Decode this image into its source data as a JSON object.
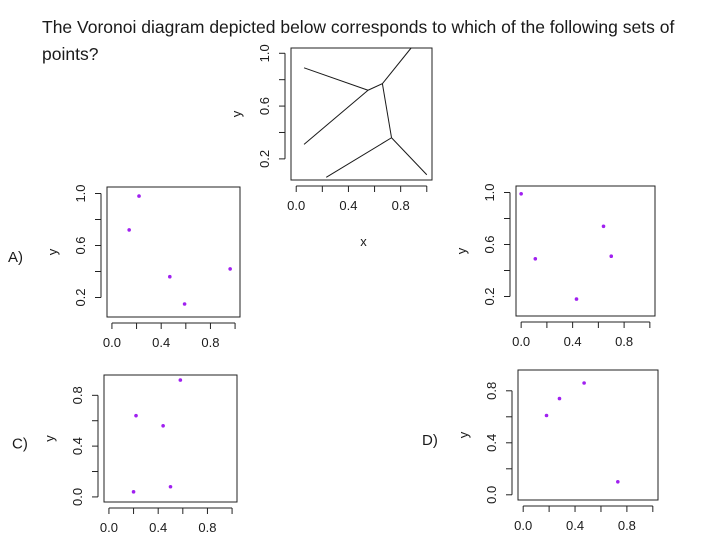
{
  "question": "The Voronoi diagram depicted below corresponds to which of the following sets of points?",
  "chart_data": [
    {
      "name": "voronoi",
      "type": "diagram",
      "xlabel": "x",
      "ylabel": "y",
      "xticks": [
        "0.0",
        "0.4",
        "0.8"
      ],
      "yticks": [
        "0.2",
        "0.6",
        "1.0"
      ],
      "xlim": [
        -0.04,
        1.04
      ],
      "ylim": [
        0.04,
        1.04
      ],
      "edges": [
        [
          [
            0.06,
            0.89
          ],
          [
            0.55,
            0.72
          ]
        ],
        [
          [
            0.55,
            0.72
          ],
          [
            0.06,
            0.31
          ]
        ],
        [
          [
            0.55,
            0.72
          ],
          [
            0.66,
            0.77
          ]
        ],
        [
          [
            0.66,
            0.77
          ],
          [
            0.88,
            1.04
          ]
        ],
        [
          [
            0.66,
            0.77
          ],
          [
            0.73,
            0.36
          ]
        ],
        [
          [
            0.73,
            0.36
          ],
          [
            0.23,
            0.06
          ]
        ],
        [
          [
            0.73,
            0.36
          ],
          [
            1.0,
            0.08
          ]
        ]
      ]
    },
    {
      "name": "A",
      "type": "scatter",
      "option_label": "A)",
      "xlabel": "",
      "ylabel": "y",
      "xticks": [
        "0.0",
        "0.4",
        "0.8"
      ],
      "yticks": [
        "0.2",
        "0.6",
        "1.0"
      ],
      "xlim": [
        -0.04,
        1.04
      ],
      "ylim": [
        0.05,
        1.05
      ],
      "points": [
        [
          0.14,
          0.72
        ],
        [
          0.22,
          0.98
        ],
        [
          0.47,
          0.36
        ],
        [
          0.59,
          0.15
        ],
        [
          0.96,
          0.42
        ]
      ]
    },
    {
      "name": "B",
      "type": "scatter",
      "option_label": "B)",
      "xlabel": "",
      "ylabel": "y",
      "xticks": [
        "0.0",
        "0.4",
        "0.8"
      ],
      "yticks": [
        "0.2",
        "0.6",
        "1.0"
      ],
      "xlim": [
        -0.04,
        1.04
      ],
      "ylim": [
        0.05,
        1.05
      ],
      "points": [
        [
          0.0,
          0.99
        ],
        [
          0.11,
          0.49
        ],
        [
          0.43,
          0.18
        ],
        [
          0.64,
          0.74
        ],
        [
          0.7,
          0.51
        ]
      ]
    },
    {
      "name": "C",
      "type": "scatter",
      "option_label": "C)",
      "xlabel": "",
      "ylabel": "y",
      "xticks": [
        "0.0",
        "0.4",
        "0.8"
      ],
      "yticks": [
        "0.0",
        "0.4",
        "0.8"
      ],
      "xlim": [
        -0.04,
        1.04
      ],
      "ylim": [
        -0.04,
        0.96
      ],
      "points": [
        [
          0.2,
          0.04
        ],
        [
          0.22,
          0.64
        ],
        [
          0.44,
          0.56
        ],
        [
          0.5,
          0.08
        ],
        [
          0.58,
          0.92
        ]
      ]
    },
    {
      "name": "D",
      "type": "scatter",
      "option_label": "D)",
      "xlabel": "",
      "ylabel": "y",
      "xticks": [
        "0.0",
        "0.4",
        "0.8"
      ],
      "yticks": [
        "0.0",
        "0.4",
        "0.8"
      ],
      "xlim": [
        -0.04,
        1.04
      ],
      "ylim": [
        -0.04,
        0.96
      ],
      "points": [
        [
          0.18,
          0.61
        ],
        [
          0.28,
          0.74
        ],
        [
          0.47,
          0.86
        ],
        [
          0.73,
          0.1
        ]
      ]
    }
  ]
}
